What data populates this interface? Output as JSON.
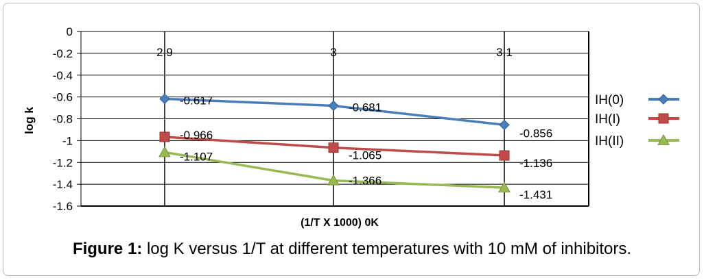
{
  "chart_data": {
    "type": "line",
    "x": [
      2.9,
      3,
      3.1
    ],
    "x_tick_labels": [
      "2.9",
      "3",
      "3.1"
    ],
    "xlabel": "(1/T X 1000) 0K",
    "ylabel": "log k",
    "ylim": [
      -1.6,
      0
    ],
    "y_ticks": [
      0,
      -0.2,
      -0.4,
      -0.6,
      -0.8,
      -1,
      -1.2,
      -1.4,
      -1.6
    ],
    "y_tick_labels": [
      "0",
      "-0.2",
      "-0.4",
      "-0.6",
      "-0.8",
      "-1",
      "-1.2",
      "-1.4",
      "-1.6"
    ],
    "grid": true,
    "legend_position": "right",
    "series": [
      {
        "name": "IH(0)",
        "values": [
          -0.617,
          -0.681,
          -0.856
        ],
        "labels": [
          "-0.617",
          "-0.681",
          "-0.856"
        ],
        "color": "#4a7ebb",
        "marker": "diamond"
      },
      {
        "name": "IH(I)",
        "values": [
          -0.966,
          -1.065,
          -1.136
        ],
        "labels": [
          "-0.966",
          "-1.065",
          "-1.136"
        ],
        "color": "#be4b48",
        "marker": "square"
      },
      {
        "name": "IH(II)",
        "values": [
          -1.107,
          -1.366,
          -1.431
        ],
        "labels": [
          "-1.107",
          "-1.366",
          "-1.431"
        ],
        "color": "#98b954",
        "marker": "triangle"
      }
    ]
  },
  "caption": {
    "label": "Figure 1:",
    "text": " log K versus 1/T at different temperatures with 10 mM of inhibitors."
  }
}
